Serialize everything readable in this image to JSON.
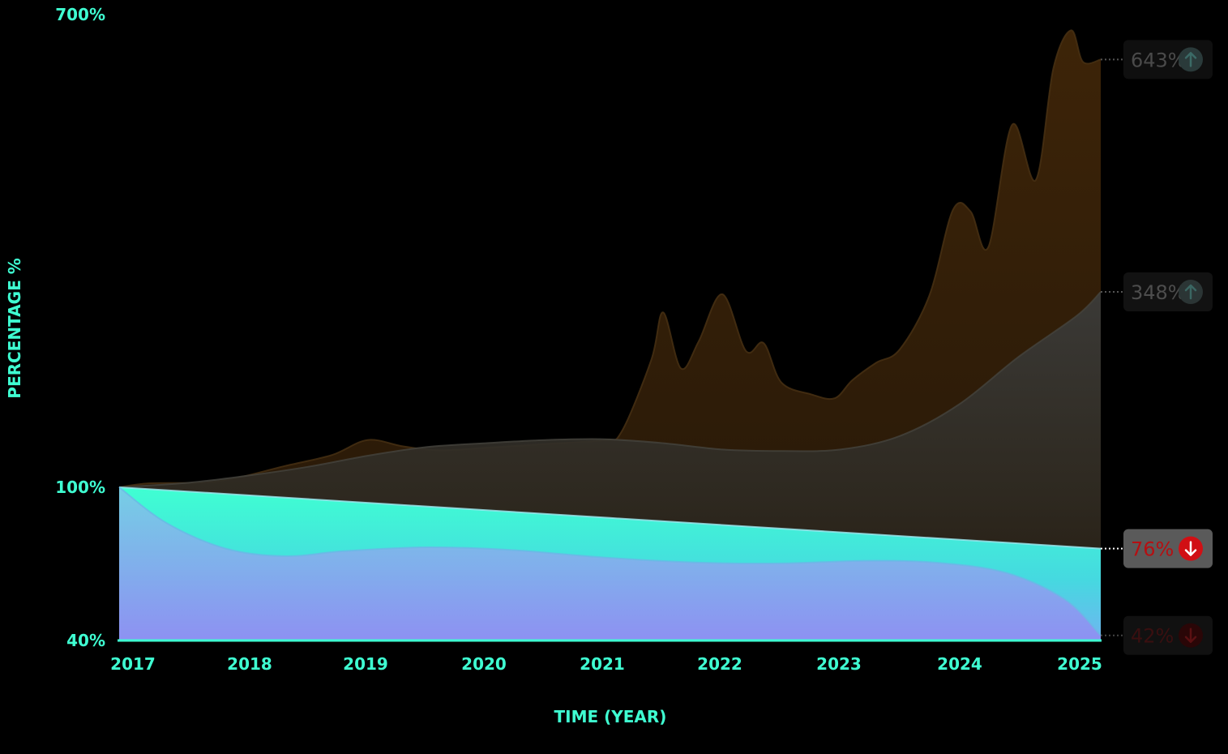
{
  "colors": {
    "accent": "#3fffd2",
    "background": "#000000",
    "series_brown": "#3a2206",
    "series_gray": "#3a3a38",
    "series_teal": "#3fffd2",
    "series_purple": "#8a8ff0",
    "down_red": "#d10f14",
    "up_dark": "#2b3a3a"
  },
  "chart_data": {
    "type": "area",
    "xlabel": "TIME (YEAR)",
    "ylabel": "PERCENTAGE %",
    "xlim": [
      2016.9,
      2025.2
    ],
    "x_ticks": [
      "2017",
      "2018",
      "2019",
      "2020",
      "2021",
      "2022",
      "2023",
      "2024",
      "2025"
    ],
    "y_ticks": [
      "700%",
      "100%",
      "40%"
    ],
    "y_scale": "piecewise",
    "y_breaks": [
      40,
      100,
      700
    ],
    "grid": false,
    "series": [
      {
        "badge": "643%",
        "trend": "up",
        "points": [
          [
            2016.9,
            100
          ],
          [
            2017.15,
            105
          ],
          [
            2017.6,
            106
          ],
          [
            2017.9,
            112
          ],
          [
            2018.3,
            127
          ],
          [
            2018.7,
            141
          ],
          [
            2019.0,
            160
          ],
          [
            2019.3,
            152
          ],
          [
            2019.6,
            147
          ],
          [
            2020.0,
            150
          ],
          [
            2020.5,
            155
          ],
          [
            2021.0,
            160
          ],
          [
            2021.15,
            171
          ],
          [
            2021.4,
            262
          ],
          [
            2021.5,
            322
          ],
          [
            2021.65,
            251
          ],
          [
            2021.8,
            285
          ],
          [
            2022.0,
            345
          ],
          [
            2022.2,
            273
          ],
          [
            2022.35,
            283
          ],
          [
            2022.5,
            233
          ],
          [
            2022.75,
            218
          ],
          [
            2022.95,
            213
          ],
          [
            2023.1,
            236
          ],
          [
            2023.3,
            258
          ],
          [
            2023.5,
            275
          ],
          [
            2023.75,
            343
          ],
          [
            2023.95,
            452
          ],
          [
            2024.1,
            450
          ],
          [
            2024.25,
            405
          ],
          [
            2024.45,
            560
          ],
          [
            2024.65,
            490
          ],
          [
            2024.8,
            632
          ],
          [
            2024.95,
            680
          ],
          [
            2025.05,
            640
          ],
          [
            2025.2,
            643
          ]
        ]
      },
      {
        "badge": "348%",
        "trend": "up",
        "points": [
          [
            2016.9,
            100
          ],
          [
            2017.5,
            106
          ],
          [
            2018.0,
            115
          ],
          [
            2018.5,
            126
          ],
          [
            2019.0,
            140
          ],
          [
            2019.5,
            151
          ],
          [
            2020.0,
            156
          ],
          [
            2020.5,
            160
          ],
          [
            2021.0,
            161
          ],
          [
            2021.5,
            156
          ],
          [
            2022.0,
            148
          ],
          [
            2022.5,
            146
          ],
          [
            2023.0,
            148
          ],
          [
            2023.5,
            165
          ],
          [
            2024.0,
            205
          ],
          [
            2024.5,
            265
          ],
          [
            2025.0,
            318
          ],
          [
            2025.2,
            348
          ]
        ]
      },
      {
        "badge": "76%",
        "trend": "down",
        "points": [
          [
            2016.9,
            100
          ],
          [
            2025.2,
            76
          ]
        ]
      },
      {
        "badge": "42%",
        "trend": "down",
        "points": [
          [
            2016.9,
            100
          ],
          [
            2017.3,
            86
          ],
          [
            2017.8,
            76
          ],
          [
            2018.3,
            73
          ],
          [
            2018.8,
            75
          ],
          [
            2019.5,
            76.5
          ],
          [
            2020.2,
            75.5
          ],
          [
            2021.0,
            72.5
          ],
          [
            2021.8,
            70.5
          ],
          [
            2022.5,
            70.2
          ],
          [
            2023.2,
            71.2
          ],
          [
            2023.8,
            70.5
          ],
          [
            2024.4,
            66.5
          ],
          [
            2024.9,
            56
          ],
          [
            2025.2,
            42
          ]
        ]
      }
    ]
  }
}
